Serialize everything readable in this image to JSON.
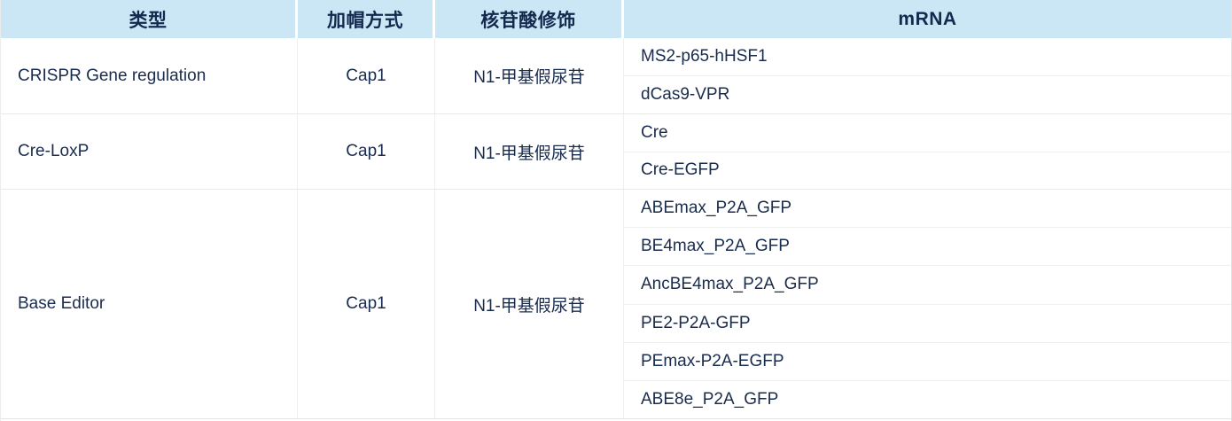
{
  "table": {
    "headers": [
      {
        "label": "类型"
      },
      {
        "label": "加帽方式"
      },
      {
        "label": "核苷酸修饰"
      },
      {
        "label": "mRNA"
      }
    ],
    "groups": [
      {
        "type": "CRISPR Gene regulation",
        "capping": "Cap1",
        "modification": "N1-甲基假尿苷",
        "mrnas": [
          "MS2-p65-hHSF1",
          "dCas9-VPR"
        ]
      },
      {
        "type": "Cre-LoxP",
        "capping": "Cap1",
        "modification": "N1-甲基假尿苷",
        "mrnas": [
          "Cre",
          "Cre-EGFP"
        ]
      },
      {
        "type": "Base Editor",
        "capping": "Cap1",
        "modification": "N1-甲基假尿苷",
        "mrnas": [
          "ABEmax_P2A_GFP",
          "BE4max_P2A_GFP",
          "AncBE4max_P2A_GFP",
          "PE2-P2A-GFP",
          "PEmax-P2A-EGFP",
          "ABE8e_P2A_GFP"
        ]
      }
    ],
    "colors": {
      "header_bg": "#cbe7f6",
      "text": "#1a2c4e",
      "divider": "#efefef",
      "row_bg": "#ffffff"
    }
  }
}
